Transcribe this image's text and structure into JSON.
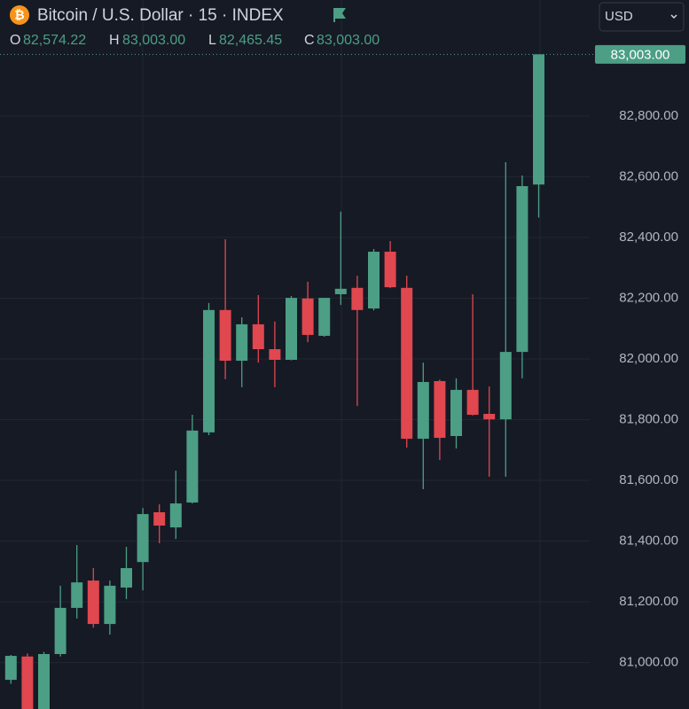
{
  "header": {
    "icon": "₿",
    "title": "Bitcoin / U.S. Dollar · 15 · INDEX",
    "currency": "USD",
    "ohlc": [
      {
        "key": "O",
        "value": "82,574.22"
      },
      {
        "key": "H",
        "value": "83,003.00"
      },
      {
        "key": "L",
        "value": "82,465.45"
      },
      {
        "key": "C",
        "value": "83,003.00"
      }
    ]
  },
  "chart_data": {
    "type": "candlestick",
    "categories": [
      null,
      null,
      null,
      null,
      null,
      null,
      null,
      null,
      null,
      null,
      null,
      null,
      null,
      null,
      null,
      null,
      null,
      null,
      null,
      null,
      null,
      null,
      null,
      null,
      null,
      null,
      null,
      null,
      null,
      null,
      null,
      null,
      null
    ],
    "open": [
      80943,
      81020,
      80840,
      81028,
      81180,
      81270,
      81127,
      81247,
      81331,
      81495,
      81445,
      81527,
      81758,
      82161,
      81994,
      82114,
      82032,
      81997,
      82199,
      82076,
      82213,
      82234,
      82166,
      82353,
      82234,
      81737,
      81927,
      81746,
      81898,
      81819,
      81801,
      82023,
      82574.22
    ],
    "high": [
      81025,
      81030,
      81035,
      81253,
      81387,
      81311,
      81270,
      81381,
      81509,
      81521,
      81632,
      81816,
      82184,
      82394,
      82137,
      82210,
      82123,
      82207,
      82254,
      82201,
      82485,
      82274,
      82362,
      82388,
      82274,
      81988,
      81932,
      81936,
      82213,
      81909,
      82648,
      82604,
      83003
    ],
    "low": [
      80930,
      80800,
      80820,
      81020,
      81145,
      81115,
      81092,
      81209,
      81238,
      81393,
      81407,
      81524,
      81749,
      81933,
      81907,
      81988,
      81907,
      81995,
      82055,
      82073,
      82178,
      81845,
      82160,
      82233,
      81708,
      81571,
      81667,
      81705,
      81814,
      81612,
      81612,
      81936,
      82465.45
    ],
    "close": [
      81022,
      80830,
      81028,
      81180,
      81264,
      81127,
      81253,
      81311,
      81489,
      81451,
      81524,
      81764,
      82161,
      81994,
      82114,
      82032,
      81997,
      82201,
      82079,
      82201,
      82231,
      82161,
      82353,
      82236,
      81737,
      81924,
      81740,
      81898,
      81816,
      81801,
      82023,
      82569,
      83003
    ],
    "up_color": "#4c9e84",
    "down_color": "#e0474f",
    "ylim": [
      80847,
      83182
    ],
    "yticks": [
      {
        "value": 81000,
        "label": "81,000.00"
      },
      {
        "value": 81200,
        "label": "81,200.00"
      },
      {
        "value": 81400,
        "label": "81,400.00"
      },
      {
        "value": 81600,
        "label": "81,600.00"
      },
      {
        "value": 81800,
        "label": "81,800.00"
      },
      {
        "value": 82000,
        "label": "82,000.00"
      },
      {
        "value": 82200,
        "label": "82,200.00"
      },
      {
        "value": 82400,
        "label": "82,400.00"
      },
      {
        "value": 82600,
        "label": "82,600.00"
      },
      {
        "value": 82800,
        "label": "82,800.00"
      }
    ],
    "last_price": {
      "value": 83003,
      "label": "83,003.00"
    },
    "grid": true
  }
}
